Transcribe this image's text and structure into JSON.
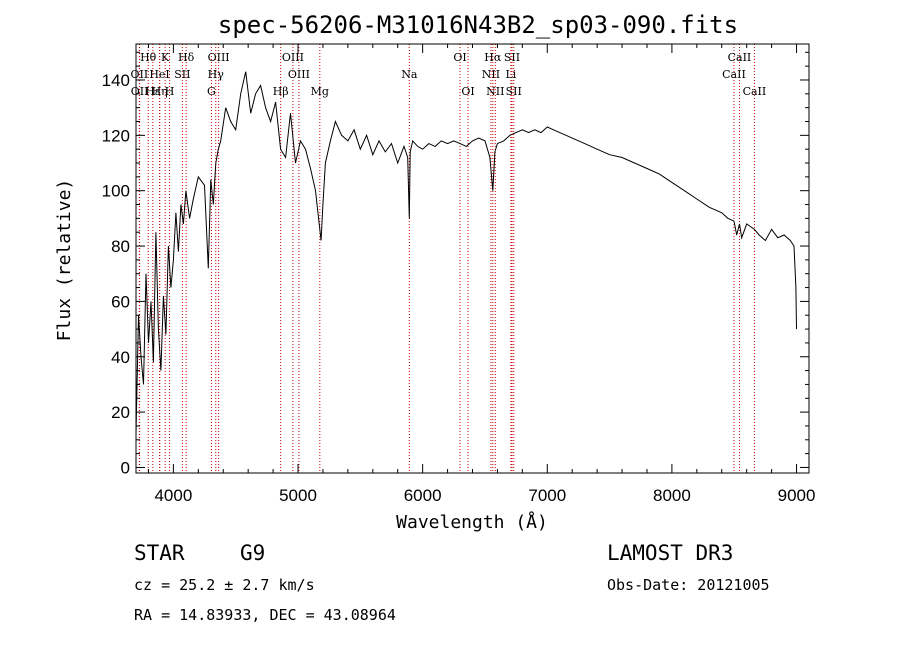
{
  "chart_data": {
    "type": "line",
    "title": "spec-56206-M31016N43B2_sp03-090.fits",
    "xlabel": "Wavelength (Å)",
    "ylabel": "Flux (relative)",
    "xlim": [
      3700,
      9100
    ],
    "ylim": [
      -2,
      153
    ],
    "x_ticks": [
      4000,
      5000,
      6000,
      7000,
      8000,
      9000
    ],
    "y_ticks": [
      0,
      20,
      40,
      60,
      80,
      100,
      120,
      140
    ],
    "grid": false,
    "line_color": "#000000",
    "marker_color": "#cc0000",
    "series": [
      {
        "name": "flux",
        "x": [
          3700,
          3720,
          3740,
          3760,
          3780,
          3800,
          3820,
          3840,
          3860,
          3880,
          3900,
          3920,
          3940,
          3960,
          3980,
          4000,
          4020,
          4040,
          4060,
          4080,
          4100,
          4130,
          4160,
          4200,
          4250,
          4280,
          4300,
          4320,
          4340,
          4360,
          4380,
          4420,
          4460,
          4500,
          4540,
          4580,
          4620,
          4660,
          4700,
          4740,
          4780,
          4820,
          4860,
          4900,
          4940,
          4980,
          5020,
          5060,
          5100,
          5140,
          5170,
          5185,
          5200,
          5220,
          5260,
          5300,
          5350,
          5400,
          5450,
          5500,
          5550,
          5600,
          5650,
          5700,
          5750,
          5800,
          5850,
          5880,
          5893,
          5900,
          5920,
          5960,
          6000,
          6050,
          6100,
          6150,
          6200,
          6250,
          6300,
          6350,
          6400,
          6450,
          6500,
          6540,
          6563,
          6580,
          6600,
          6650,
          6700,
          6750,
          6800,
          6850,
          6900,
          6950,
          7000,
          7050,
          7100,
          7150,
          7200,
          7300,
          7400,
          7500,
          7600,
          7700,
          7800,
          7900,
          8000,
          8100,
          8200,
          8300,
          8400,
          8450,
          8498,
          8520,
          8542,
          8560,
          8600,
          8662,
          8700,
          8750,
          8800,
          8850,
          8900,
          8950,
          8980,
          8995,
          9000
        ],
        "y": [
          12,
          55,
          40,
          30,
          70,
          45,
          60,
          38,
          85,
          50,
          35,
          62,
          48,
          80,
          65,
          75,
          92,
          78,
          95,
          88,
          100,
          90,
          97,
          105,
          102,
          72,
          104,
          95,
          110,
          115,
          118,
          130,
          125,
          122,
          135,
          143,
          128,
          135,
          138,
          130,
          125,
          132,
          115,
          112,
          128,
          110,
          118,
          115,
          108,
          100,
          88,
          82,
          95,
          110,
          118,
          125,
          120,
          118,
          122,
          115,
          120,
          113,
          118,
          114,
          117,
          110,
          116,
          112,
          90,
          114,
          118,
          116,
          115,
          117,
          116,
          118,
          117,
          118,
          117,
          116,
          118,
          119,
          118,
          112,
          100,
          114,
          117,
          118,
          120,
          121,
          122,
          121,
          122,
          121,
          123,
          122,
          121,
          120,
          119,
          117,
          115,
          113,
          112,
          110,
          108,
          106,
          103,
          100,
          97,
          94,
          92,
          90,
          89,
          84,
          88,
          83,
          88,
          86,
          84,
          82,
          86,
          83,
          84,
          82,
          80,
          65,
          50
        ]
      }
    ],
    "lines": [
      {
        "label": "Hθ",
        "wave": 3798,
        "row": 0
      },
      {
        "label": "OII",
        "wave": 3727,
        "row": 1
      },
      {
        "label": "OII",
        "wave": 3729,
        "row": 2
      },
      {
        "label": "Hε",
        "wave": 3835,
        "row": 2
      },
      {
        "label": "K",
        "wave": 3934,
        "row": 0
      },
      {
        "label": "HeI",
        "wave": 3889,
        "row": 1
      },
      {
        "label": "Hη",
        "wave": 3890,
        "row": 2
      },
      {
        "label": "SII",
        "wave": 4072,
        "row": 1
      },
      {
        "label": "H",
        "wave": 3969,
        "row": 2
      },
      {
        "label": "Hδ",
        "wave": 4102,
        "row": 0
      },
      {
        "label": "OIII",
        "wave": 4363,
        "row": 0
      },
      {
        "label": "Hγ",
        "wave": 4340,
        "row": 1
      },
      {
        "label": "G",
        "wave": 4305,
        "row": 2
      },
      {
        "label": "OIII",
        "wave": 4959,
        "row": 0
      },
      {
        "label": "OIII",
        "wave": 5007,
        "row": 1
      },
      {
        "label": "Hβ",
        "wave": 4861,
        "row": 2
      },
      {
        "label": "Mg",
        "wave": 5175,
        "row": 2
      },
      {
        "label": "Na",
        "wave": 5893,
        "row": 1
      },
      {
        "label": "OI",
        "wave": 6300,
        "row": 0
      },
      {
        "label": "OI",
        "wave": 6364,
        "row": 2
      },
      {
        "label": "Hα",
        "wave": 6563,
        "row": 0
      },
      {
        "label": "SII",
        "wave": 6717,
        "row": 0
      },
      {
        "label": "NII",
        "wave": 6548,
        "row": 1
      },
      {
        "label": "Li",
        "wave": 6708,
        "row": 1
      },
      {
        "label": "NII",
        "wave": 6583,
        "row": 2
      },
      {
        "label": "SII",
        "wave": 6731,
        "row": 2
      },
      {
        "label": "CaII",
        "wave": 8542,
        "row": 0
      },
      {
        "label": "CaII",
        "wave": 8498,
        "row": 1
      },
      {
        "label": "CaII",
        "wave": 8662,
        "row": 2
      }
    ]
  },
  "info": {
    "object_class": "STAR",
    "subclass": "G9",
    "survey": "LAMOST DR3",
    "cz": "cz = 25.2 ± 2.7 km/s",
    "obs_date": "Obs-Date: 20121005",
    "coords": "RA =  14.83933, DEC =  43.08964"
  }
}
